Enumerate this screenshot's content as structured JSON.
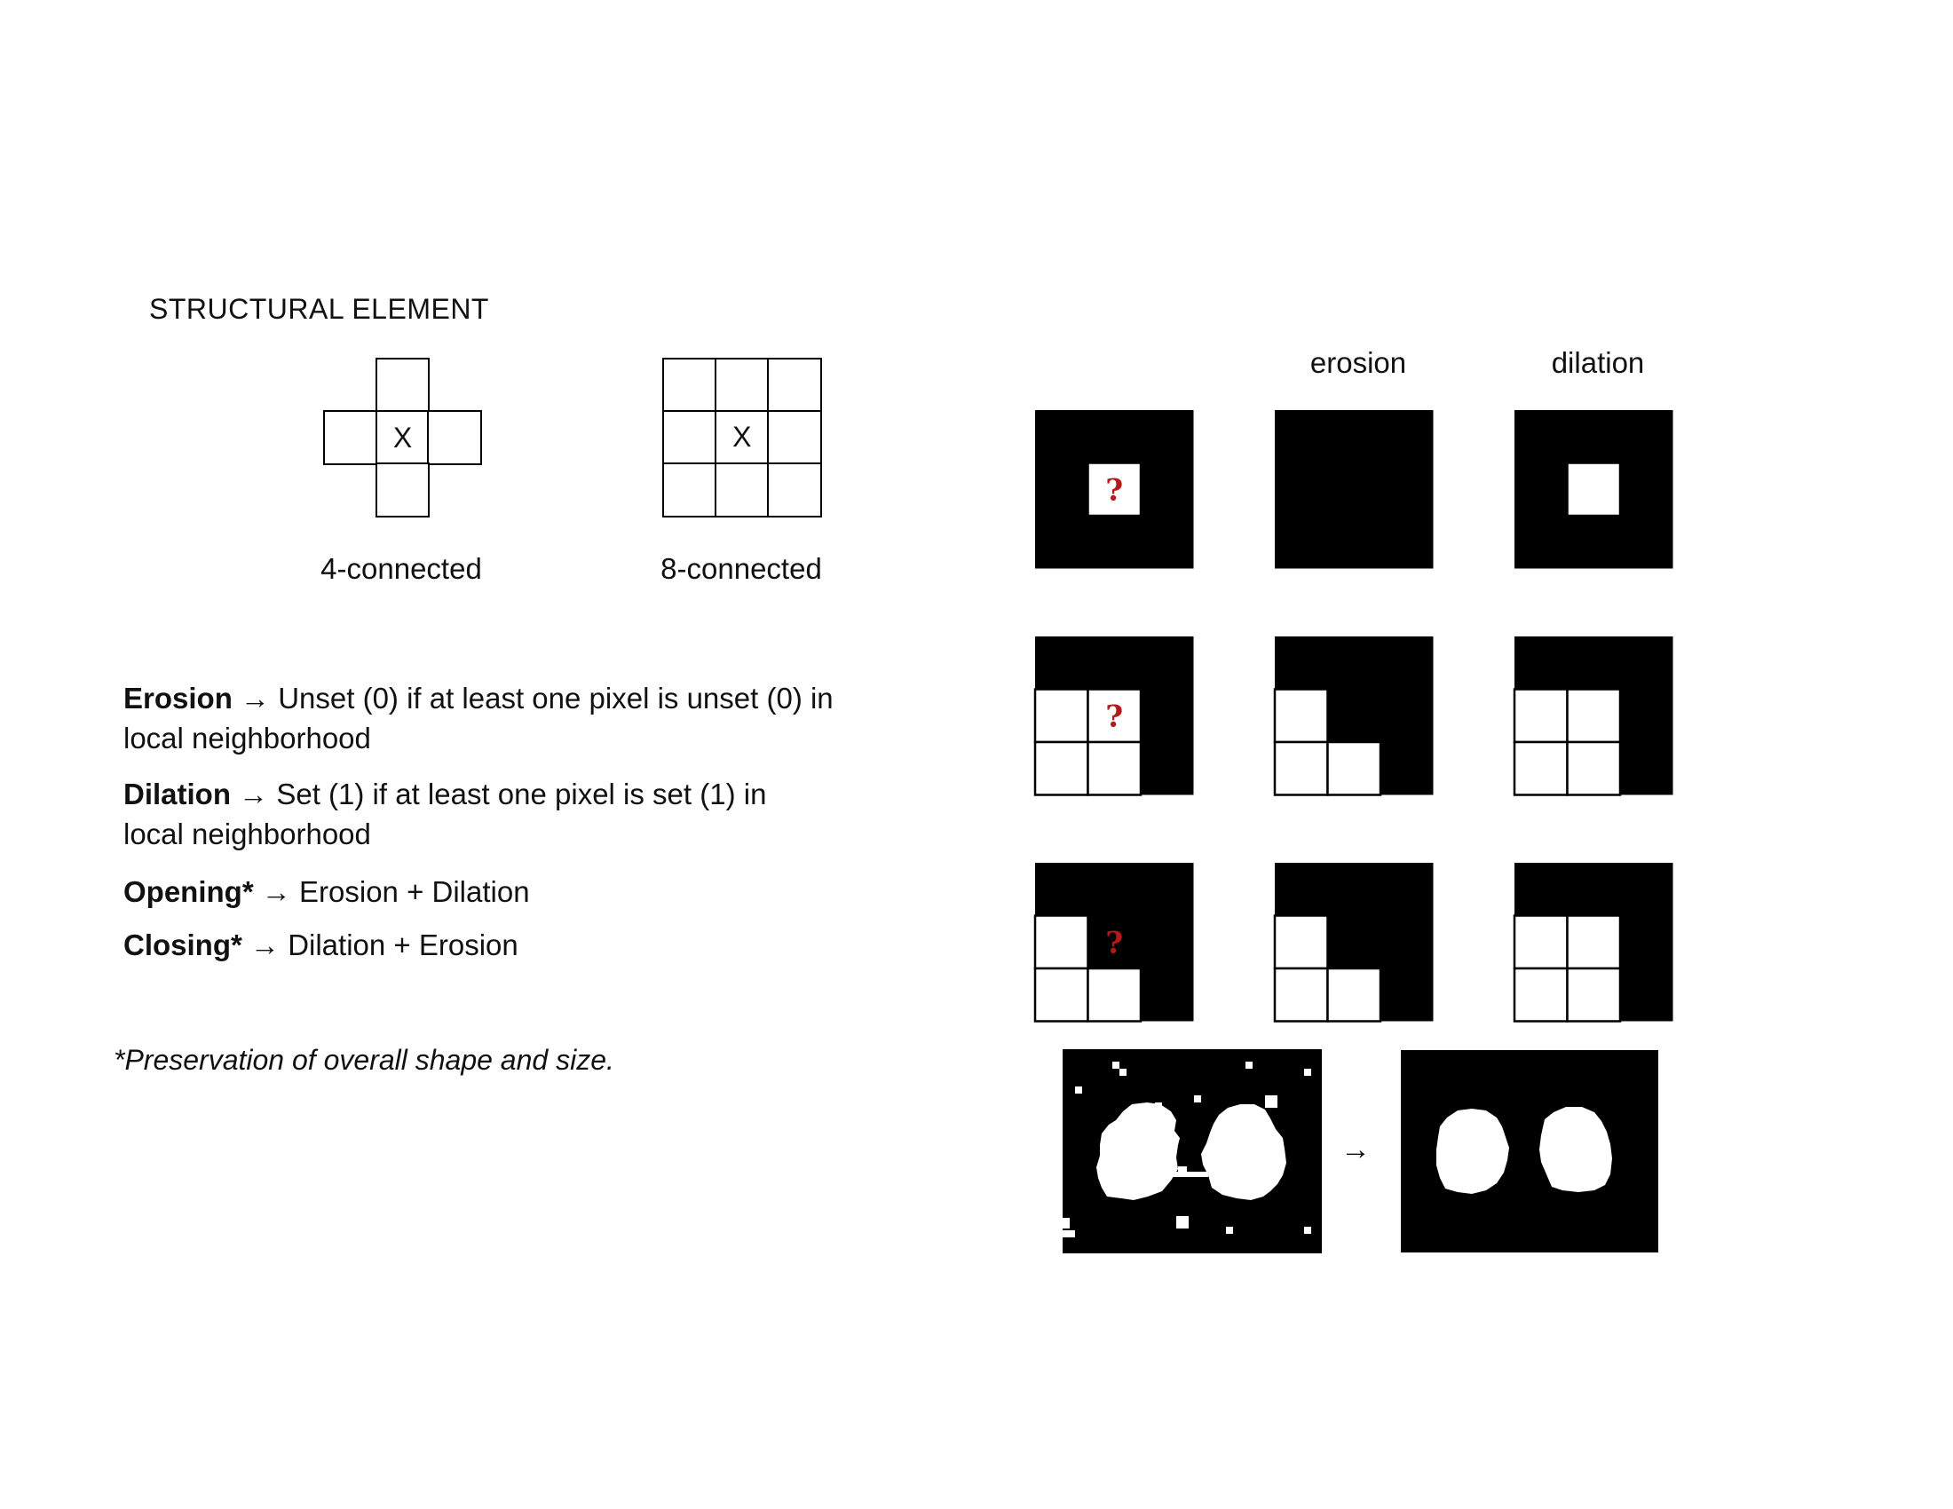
{
  "title": "STRUCTURAL ELEMENT",
  "elements": {
    "four": {
      "center": "X",
      "caption": "4-connected"
    },
    "eight": {
      "center": "X",
      "caption": "8-connected"
    }
  },
  "definitions": [
    {
      "term": "Erosion",
      "arrow": "→",
      "text": "Unset (0) if at least one pixel is unset (0) in local neighborhood"
    },
    {
      "term": "Dilation",
      "arrow": "→",
      "text": "Set (1) if at least one pixel is set (1) in local neighborhood"
    },
    {
      "term": "Opening*",
      "arrow": "→",
      "text": "Erosion + Dilation"
    },
    {
      "term": "Closing*",
      "arrow": "→",
      "text": "Dilation + Erosion"
    }
  ],
  "footnote": "*Preservation of overall shape and size.",
  "columns": {
    "erosion": "erosion",
    "dilation": "dilation"
  },
  "question_mark": "?",
  "example_arrow": "→",
  "colors": {
    "black": "#000000",
    "white": "#ffffff",
    "question": "#b41a1a"
  },
  "grids": {
    "row1": {
      "input": [
        [
          1,
          1,
          1
        ],
        [
          1,
          0,
          1
        ],
        [
          1,
          1,
          1
        ]
      ],
      "erosion": [
        [
          1,
          1,
          1
        ],
        [
          1,
          1,
          1
        ],
        [
          1,
          1,
          1
        ]
      ],
      "dilation": [
        [
          1,
          1,
          1
        ],
        [
          1,
          0,
          1
        ],
        [
          1,
          1,
          1
        ]
      ],
      "question_cell": [
        1,
        1
      ]
    },
    "row2": {
      "input": [
        [
          1,
          1,
          1
        ],
        [
          0,
          0,
          1
        ],
        [
          0,
          0,
          1
        ]
      ],
      "erosion": [
        [
          1,
          1,
          1
        ],
        [
          0,
          1,
          1
        ],
        [
          0,
          0,
          1
        ]
      ],
      "dilation": [
        [
          1,
          1,
          1
        ],
        [
          0,
          0,
          1
        ],
        [
          0,
          0,
          1
        ]
      ],
      "question_cell": [
        1,
        1
      ]
    },
    "row3": {
      "input": [
        [
          1,
          1,
          1
        ],
        [
          0,
          1,
          1
        ],
        [
          0,
          0,
          1
        ]
      ],
      "erosion": [
        [
          1,
          1,
          1
        ],
        [
          0,
          1,
          1
        ],
        [
          0,
          0,
          1
        ]
      ],
      "dilation": [
        [
          1,
          1,
          1
        ],
        [
          0,
          0,
          1
        ],
        [
          0,
          0,
          1
        ]
      ],
      "question_cell": [
        1,
        1
      ]
    }
  }
}
